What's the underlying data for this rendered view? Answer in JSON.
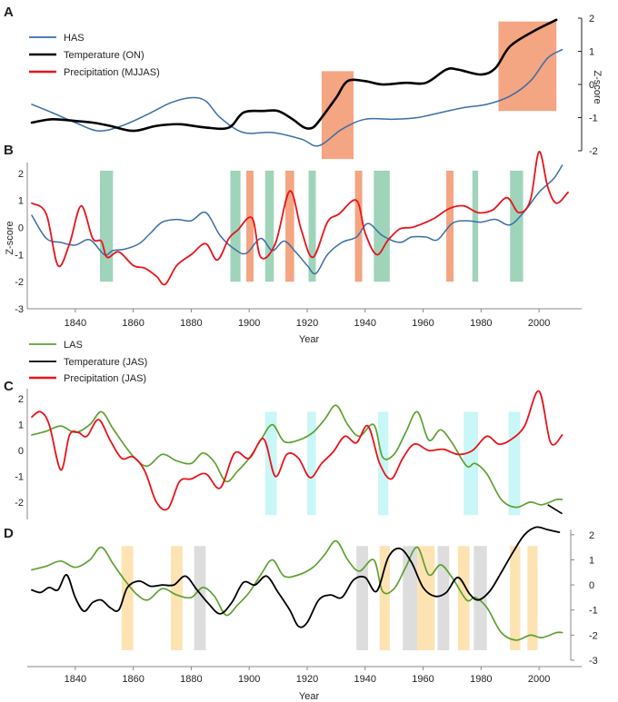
{
  "chart_data": [
    {
      "panel": "A",
      "type": "line",
      "y_axis_title": "Z-score",
      "y_ticks": [
        2,
        1,
        0,
        -1,
        -2
      ],
      "ylim": [
        -2,
        2
      ],
      "xlim": [
        1825,
        2010
      ],
      "legend": [
        "HAS",
        "Temperature (ON)",
        "Precipitation (MJJAS)"
      ],
      "colors": {
        "has": "#3a6ea5",
        "temperature": "#000000",
        "precipitation": "#e8141b",
        "shade": "#f4a582"
      },
      "shaded_regions": [
        [
          1925,
          1936
        ],
        [
          1986,
          2006
        ]
      ],
      "series": [
        {
          "name": "HAS",
          "color": "#3a6ea5",
          "x": [
            1825,
            1832,
            1840,
            1848,
            1856,
            1865,
            1873,
            1880,
            1885,
            1890,
            1898,
            1908,
            1918,
            1924,
            1932,
            1940,
            1950,
            1958,
            1966,
            1974,
            1982,
            1990,
            1997,
            2003,
            2008
          ],
          "y": [
            -0.6,
            -0.85,
            -1.15,
            -1.4,
            -1.25,
            -0.9,
            -0.55,
            -0.4,
            -0.5,
            -1.0,
            -1.45,
            -1.45,
            -1.65,
            -1.85,
            -1.35,
            -1.05,
            -1.05,
            -1.0,
            -0.85,
            -0.7,
            -0.6,
            -0.35,
            0.1,
            0.8,
            1.05
          ]
        },
        {
          "name": "Temperature (ON)",
          "color": "#000000",
          "x": [
            1825,
            1832,
            1840,
            1846,
            1852,
            1860,
            1868,
            1876,
            1885,
            1893,
            1898,
            1905,
            1910,
            1915,
            1919,
            1922,
            1925,
            1930,
            1934,
            1940,
            1946,
            1954,
            1961,
            1968,
            1972,
            1980,
            1985,
            1990,
            1998,
            2006
          ],
          "y": [
            -1.15,
            -1.05,
            -1.1,
            -1.15,
            -1.25,
            -1.4,
            -1.25,
            -1.2,
            -1.3,
            -1.3,
            -0.85,
            -0.8,
            -0.8,
            -1.05,
            -1.3,
            -1.3,
            -1.0,
            -0.4,
            0.1,
            0.1,
            0.0,
            0.05,
            0.05,
            0.45,
            0.45,
            0.3,
            0.5,
            1.15,
            1.6,
            1.95
          ]
        }
      ]
    },
    {
      "panel": "B",
      "type": "line",
      "y_axis_title": "Z-score",
      "y_ticks": [
        2,
        1,
        0,
        -1,
        -2,
        -3
      ],
      "ylim": [
        -3,
        2.5
      ],
      "xlim": [
        1825,
        2010
      ],
      "x_ticks": [
        1840,
        1860,
        1880,
        1900,
        1920,
        1940,
        1960,
        1980,
        2000
      ],
      "x_label": "Year",
      "shaded_regions": [
        {
          "x0": 1848.5,
          "x1": 1853,
          "color": "#9fd4bb"
        },
        {
          "x0": 1893.5,
          "x1": 1897,
          "color": "#9fd4bb"
        },
        {
          "x0": 1899,
          "x1": 1901.5,
          "color": "#f4a582"
        },
        {
          "x0": 1905.5,
          "x1": 1908.5,
          "color": "#9fd4bb"
        },
        {
          "x0": 1912.5,
          "x1": 1915.5,
          "color": "#f4a582"
        },
        {
          "x0": 1920.5,
          "x1": 1923,
          "color": "#9fd4bb"
        },
        {
          "x0": 1936.5,
          "x1": 1939,
          "color": "#f4a582"
        },
        {
          "x0": 1943,
          "x1": 1948.5,
          "color": "#9fd4bb"
        },
        {
          "x0": 1968,
          "x1": 1970.5,
          "color": "#f4a582"
        },
        {
          "x0": 1977,
          "x1": 1979,
          "color": "#9fd4bb"
        },
        {
          "x0": 1990,
          "x1": 1994.5,
          "color": "#9fd4bb"
        }
      ],
      "series": [
        {
          "name": "HAS",
          "color": "#3a6ea5",
          "x": [
            1825,
            1830,
            1835,
            1840,
            1845,
            1850,
            1853,
            1857,
            1862,
            1866,
            1870,
            1875,
            1880,
            1885,
            1890,
            1895,
            1899,
            1904,
            1908,
            1912,
            1916,
            1920,
            1923,
            1927,
            1932,
            1937,
            1941,
            1946,
            1952,
            1956,
            1961,
            1965,
            1970,
            1975,
            1980,
            1985,
            1990,
            1995,
            2000,
            2005,
            2008
          ],
          "y": [
            0.45,
            -0.4,
            -0.55,
            -0.65,
            -0.45,
            -1.0,
            -0.85,
            -0.8,
            -0.6,
            -0.2,
            0.2,
            0.3,
            0.25,
            0.55,
            -0.3,
            -0.8,
            -0.95,
            -0.4,
            -0.85,
            -0.5,
            -0.9,
            -1.4,
            -1.7,
            -1.0,
            -0.55,
            -0.35,
            0.15,
            -0.3,
            -0.55,
            -0.35,
            -0.35,
            -0.45,
            0.15,
            0.25,
            0.2,
            0.3,
            0.1,
            0.6,
            1.3,
            1.8,
            2.3
          ]
        },
        {
          "name": "Precipitation",
          "color": "#e8141b",
          "x": [
            1825,
            1830,
            1834,
            1838,
            1842,
            1846,
            1849,
            1851,
            1855,
            1860,
            1864,
            1868,
            1871,
            1875,
            1880,
            1885,
            1889,
            1893,
            1896,
            1901,
            1904,
            1909,
            1914,
            1918,
            1922,
            1927,
            1931,
            1937,
            1940,
            1944,
            1948,
            1952,
            1956,
            1960,
            1964,
            1969,
            1974,
            1979,
            1984,
            1989,
            1993,
            1997,
            2000,
            2003,
            2006,
            2010
          ],
          "y": [
            0.9,
            0.5,
            -1.4,
            -0.6,
            0.8,
            -0.4,
            -0.5,
            -1.1,
            -0.9,
            -1.4,
            -1.5,
            -1.8,
            -2.1,
            -1.4,
            -1.0,
            -0.6,
            -1.2,
            -0.4,
            -0.1,
            0.35,
            -1.1,
            -0.6,
            1.35,
            -0.1,
            -1.1,
            0.2,
            0.5,
            1.0,
            -0.2,
            -1.0,
            -0.45,
            -0.05,
            0.0,
            0.15,
            0.35,
            0.7,
            0.8,
            0.55,
            0.65,
            1.1,
            0.55,
            1.0,
            2.8,
            1.5,
            0.9,
            1.3
          ]
        }
      ]
    },
    {
      "panel": "C",
      "type": "line",
      "y_ticks": [
        2,
        1,
        0,
        -1,
        -2
      ],
      "ylim": [
        -2.6,
        2.5
      ],
      "xlim": [
        1825,
        2010
      ],
      "legend": [
        "LAS",
        "Temperature (JAS)",
        "Precipitation (JAS)"
      ],
      "colors": {
        "las": "#5ea032",
        "temperature": "#000000",
        "precipitation": "#e8141b",
        "shade": "#c9f6f6"
      },
      "shaded_regions": [
        [
          1905.5,
          1909.5
        ],
        [
          1920,
          1923
        ],
        [
          1944.5,
          1948
        ],
        [
          1974,
          1979
        ],
        [
          1989.5,
          1993.5
        ]
      ],
      "series": [
        {
          "name": "LAS",
          "color": "#5ea032",
          "x": [
            1825,
            1830,
            1835,
            1840,
            1845,
            1849,
            1853,
            1857,
            1861,
            1865,
            1870,
            1875,
            1880,
            1884,
            1888,
            1892,
            1896,
            1900,
            1904,
            1908,
            1912,
            1917,
            1922,
            1926,
            1930,
            1934,
            1938,
            1943,
            1946,
            1950,
            1954,
            1958,
            1962,
            1966,
            1970,
            1975,
            1978,
            1982,
            1987,
            1992,
            1997,
            2001,
            2006,
            2008
          ],
          "y": [
            0.6,
            0.75,
            0.95,
            0.7,
            1.0,
            1.5,
            0.85,
            0.2,
            -0.35,
            -0.6,
            -0.15,
            -0.4,
            -0.5,
            -0.1,
            -0.45,
            -1.2,
            -0.8,
            -0.3,
            0.4,
            1.0,
            0.35,
            0.4,
            0.7,
            1.2,
            1.75,
            1.0,
            0.55,
            1.0,
            -0.25,
            -0.15,
            0.7,
            1.5,
            0.4,
            0.8,
            0.3,
            -0.6,
            -0.5,
            -0.9,
            -1.9,
            -2.2,
            -2.0,
            -2.1,
            -1.9,
            -1.9
          ]
        },
        {
          "name": "Precipitation (JAS)",
          "color": "#e8141b",
          "x": [
            1825,
            1828,
            1831,
            1835,
            1838,
            1841,
            1844,
            1848,
            1852,
            1856,
            1860,
            1864,
            1868,
            1872,
            1876,
            1880,
            1885,
            1890,
            1895,
            1900,
            1905,
            1909,
            1913,
            1917,
            1921,
            1925,
            1929,
            1933,
            1937,
            1941,
            1945,
            1949,
            1953,
            1957,
            1962,
            1967,
            1972,
            1977,
            1982,
            1986,
            1990,
            1995,
            2000,
            2004,
            2008
          ],
          "y": [
            1.3,
            1.5,
            1.0,
            -0.75,
            0.6,
            0.7,
            0.55,
            1.2,
            0.4,
            -0.3,
            -0.25,
            -0.8,
            -2.0,
            -2.25,
            -1.2,
            -1.1,
            -0.9,
            -1.45,
            -0.1,
            -0.3,
            0.45,
            -1.0,
            -0.15,
            -0.3,
            -1.05,
            -0.5,
            -0.05,
            0.55,
            0.3,
            0.95,
            -0.5,
            -1.1,
            -0.3,
            0.25,
            0.0,
            0.05,
            -0.15,
            0.0,
            0.55,
            0.25,
            0.4,
            0.95,
            2.3,
            0.3,
            0.6
          ]
        }
      ]
    },
    {
      "panel": "D",
      "type": "line",
      "y_ticks": [
        2,
        1,
        0,
        -1,
        -2,
        -3
      ],
      "ylim": [
        -3,
        2.5
      ],
      "xlim": [
        1825,
        2010
      ],
      "x_ticks": [
        1840,
        1860,
        1880,
        1900,
        1920,
        1940,
        1960,
        1980,
        2000
      ],
      "x_label": "Year",
      "shaded_regions": [
        {
          "x0": 1856,
          "x1": 1860,
          "color": "#fce3b1"
        },
        {
          "x0": 1873,
          "x1": 1877,
          "color": "#fce3b1"
        },
        {
          "x0": 1881,
          "x1": 1885,
          "color": "#dddddd"
        },
        {
          "x0": 1937,
          "x1": 1941,
          "color": "#dddddd"
        },
        {
          "x0": 1945,
          "x1": 1948.5,
          "color": "#fce3b1"
        },
        {
          "x0": 1953,
          "x1": 1958,
          "color": "#dddddd"
        },
        {
          "x0": 1958,
          "x1": 1964,
          "color": "#fce3b1"
        },
        {
          "x0": 1965,
          "x1": 1969,
          "color": "#dddddd"
        },
        {
          "x0": 1972,
          "x1": 1976,
          "color": "#fce3b1"
        },
        {
          "x0": 1977.5,
          "x1": 1982,
          "color": "#dddddd"
        },
        {
          "x0": 1990,
          "x1": 1993.5,
          "color": "#fce3b1"
        },
        {
          "x0": 1996,
          "x1": 1999.5,
          "color": "#fce3b1"
        }
      ],
      "series": [
        {
          "name": "LAS",
          "color": "#5ea032",
          "x": [
            1825,
            1830,
            1835,
            1840,
            1845,
            1849,
            1853,
            1857,
            1861,
            1865,
            1870,
            1875,
            1880,
            1884,
            1888,
            1892,
            1896,
            1900,
            1904,
            1908,
            1912,
            1917,
            1922,
            1926,
            1930,
            1934,
            1938,
            1943,
            1946,
            1950,
            1954,
            1958,
            1962,
            1966,
            1970,
            1975,
            1978,
            1982,
            1987,
            1992,
            1997,
            2001,
            2006,
            2008
          ],
          "y": [
            0.6,
            0.75,
            0.95,
            0.7,
            1.0,
            1.5,
            0.85,
            0.2,
            -0.35,
            -0.6,
            -0.15,
            -0.4,
            -0.5,
            -0.1,
            -0.45,
            -1.2,
            -0.8,
            -0.3,
            0.4,
            1.0,
            0.35,
            0.4,
            0.7,
            1.2,
            1.75,
            1.0,
            0.55,
            1.0,
            -0.25,
            -0.15,
            0.7,
            1.5,
            0.4,
            0.8,
            0.3,
            -0.6,
            -0.5,
            -0.9,
            -1.9,
            -2.2,
            -2.0,
            -2.1,
            -1.9,
            -1.9
          ]
        },
        {
          "name": "Temperature (JAS)",
          "color": "#000000",
          "x": [
            1825,
            1828,
            1831,
            1834,
            1837,
            1840,
            1843,
            1846,
            1849,
            1852,
            1855,
            1858,
            1862,
            1866,
            1870,
            1874,
            1878,
            1882,
            1886,
            1890,
            1894,
            1898,
            1902,
            1906,
            1910,
            1914,
            1917,
            1920,
            1924,
            1928,
            1932,
            1936,
            1940,
            1944,
            1948,
            1952,
            1956,
            1960,
            1964,
            1968,
            1972,
            1976,
            1979,
            1983,
            1987,
            1991,
            1995,
            1999,
            2003,
            2007
          ],
          "y": [
            -0.2,
            -0.3,
            -0.1,
            -0.2,
            0.4,
            -0.5,
            -1.05,
            -0.7,
            -0.6,
            -0.9,
            -1.0,
            -0.1,
            0.15,
            -0.05,
            0.0,
            0.0,
            0.35,
            -0.2,
            -0.75,
            -1.15,
            -0.7,
            0.1,
            0.0,
            0.35,
            -0.3,
            -1.0,
            -1.65,
            -1.5,
            -0.6,
            -0.4,
            -0.5,
            0.2,
            0.3,
            -0.25,
            1.1,
            1.45,
            0.9,
            -0.1,
            -0.45,
            -0.3,
            0.3,
            -0.35,
            -0.6,
            -0.25,
            0.5,
            1.3,
            2.0,
            2.3,
            2.2,
            2.1
          ]
        }
      ]
    }
  ],
  "labels": {
    "panel_a": "A",
    "panel_b": "B",
    "panel_c": "C",
    "panel_d": "D",
    "legend_a": [
      "HAS",
      "Temperature (ON)",
      "Precipitation (MJJAS)"
    ],
    "legend_c": [
      "LAS",
      "Temperature (JAS)",
      "Precipitation (JAS)"
    ],
    "y_title": "Z-score",
    "x_title": "Year",
    "ticks_a": [
      "2",
      "1",
      "0",
      "-1",
      "-2"
    ],
    "ticks_b": [
      "2",
      "1",
      "0",
      "-1",
      "-2",
      "-3"
    ],
    "ticks_c": [
      "2",
      "1",
      "0",
      "-1",
      "-2"
    ],
    "ticks_d": [
      "2",
      "1",
      "0",
      "-1",
      "-2",
      "-3"
    ],
    "year_ticks": [
      "1840",
      "1860",
      "1880",
      "1900",
      "1920",
      "1940",
      "1960",
      "1980",
      "2000"
    ]
  }
}
